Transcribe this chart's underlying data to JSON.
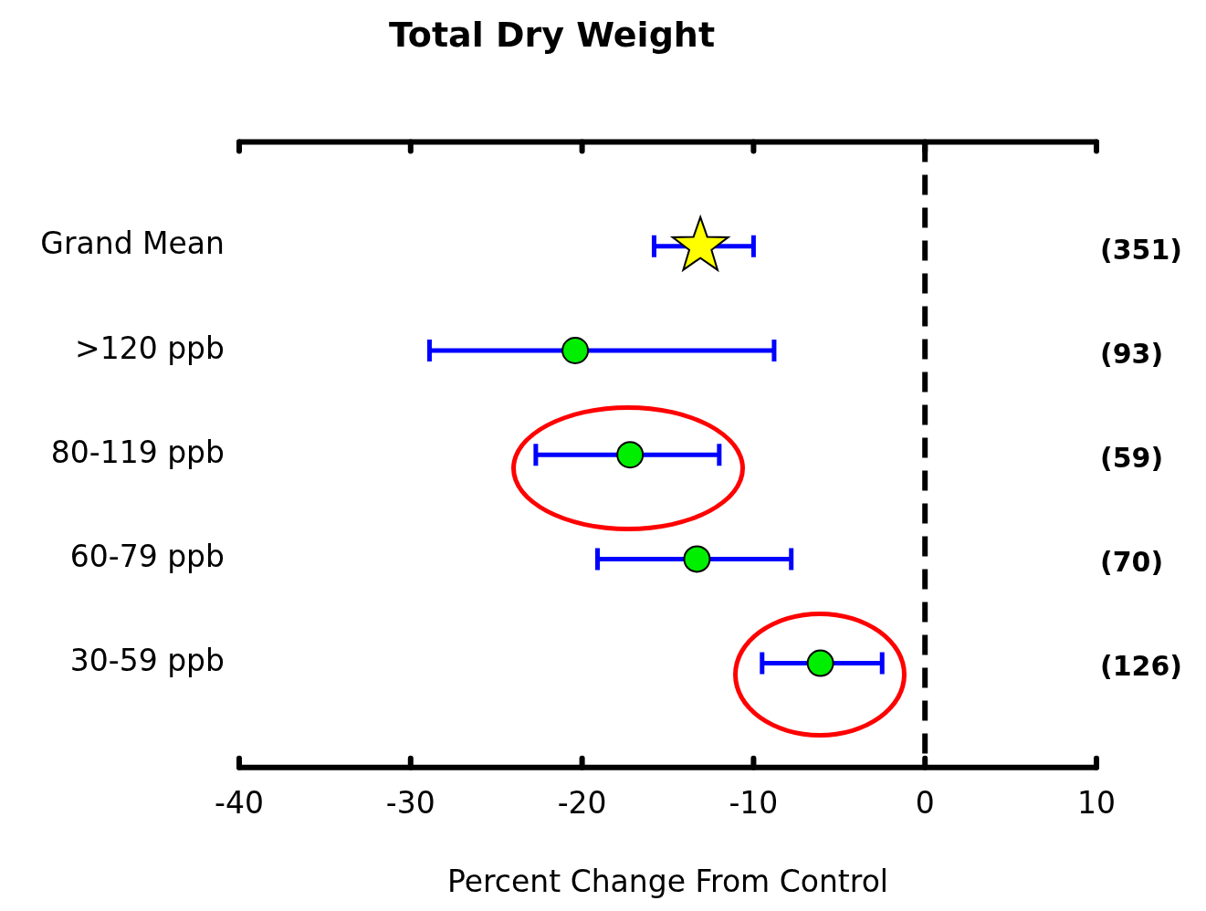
{
  "chart_data": {
    "type": "scatter",
    "orientation": "horizontal",
    "title": "Total Dry Weight",
    "xlabel": "Percent Change From Control",
    "categories": [
      "Grand Mean",
      ">120 ppb",
      "80-119 ppb",
      "60-79 ppb",
      "30-59 ppb"
    ],
    "series": [
      {
        "color": "#ffff00",
        "marker": "star",
        "values": [
          -13.1,
          null,
          null,
          null,
          null
        ],
        "errors": [
          [
            -15.8,
            -10.0
          ],
          null,
          null,
          null,
          null
        ]
      },
      {
        "color": "#00ee00",
        "marker": "circle",
        "values": [
          null,
          -20.4,
          -17.2,
          -13.3,
          -6.1
        ],
        "errors": [
          null,
          [
            -28.9,
            -8.8
          ],
          [
            -22.7,
            -12.0
          ],
          [
            -19.1,
            -7.8
          ],
          [
            -9.5,
            -2.5
          ]
        ]
      }
    ],
    "xlim": [
      -40,
      10
    ],
    "xticks": [
      -40,
      -30,
      -20,
      -10,
      0,
      10
    ],
    "grid": false,
    "legend": false,
    "ref_lines": [
      {
        "axis": "x",
        "value": 0,
        "color": "#000000",
        "line_style": "dashed"
      }
    ],
    "annotations": [
      "(351)",
      "(93)",
      "(59)",
      "(70)",
      "(126)"
    ]
  }
}
